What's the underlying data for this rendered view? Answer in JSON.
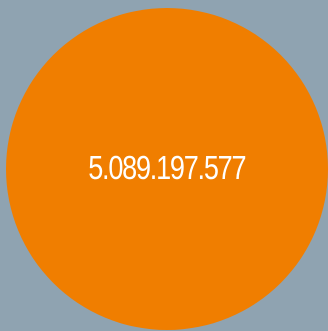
{
  "colors": {
    "background": "#8fa3b1",
    "circle": "#f07e00",
    "text": "#ffffff"
  },
  "badge": {
    "value": "5.089.197.577"
  }
}
